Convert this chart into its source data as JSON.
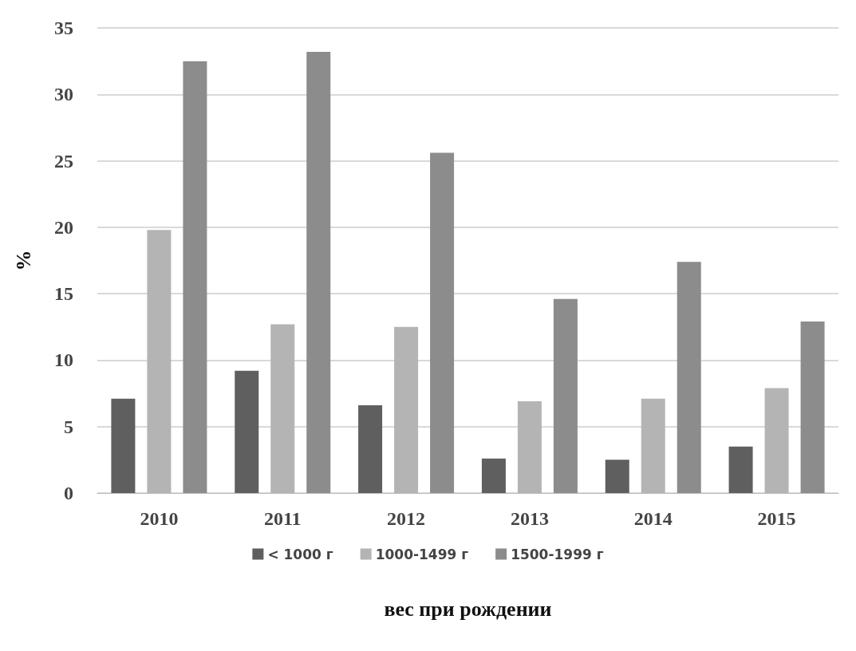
{
  "chart_data": {
    "type": "bar",
    "xlabel": "вес при рождении",
    "ylabel": "%",
    "categories": [
      "2010",
      "2011",
      "2012",
      "2013",
      "2014",
      "2015"
    ],
    "series": [
      {
        "name": "< 1000 г",
        "color": "#5f5f5f",
        "values": [
          7.1,
          9.2,
          6.6,
          2.6,
          2.5,
          3.5
        ]
      },
      {
        "name": "1000-1499 г",
        "color": "#b4b4b4",
        "values": [
          19.8,
          12.7,
          12.5,
          6.9,
          7.1,
          7.9
        ]
      },
      {
        "name": "1500-1999 г",
        "color": "#8c8c8c",
        "values": [
          32.5,
          33.2,
          25.6,
          14.6,
          17.4,
          12.9
        ]
      }
    ],
    "ylim": [
      0,
      35
    ],
    "yticks": [
      0,
      5,
      10,
      15,
      20,
      25,
      30,
      35
    ],
    "grid": "y",
    "legend": "bottom"
  }
}
